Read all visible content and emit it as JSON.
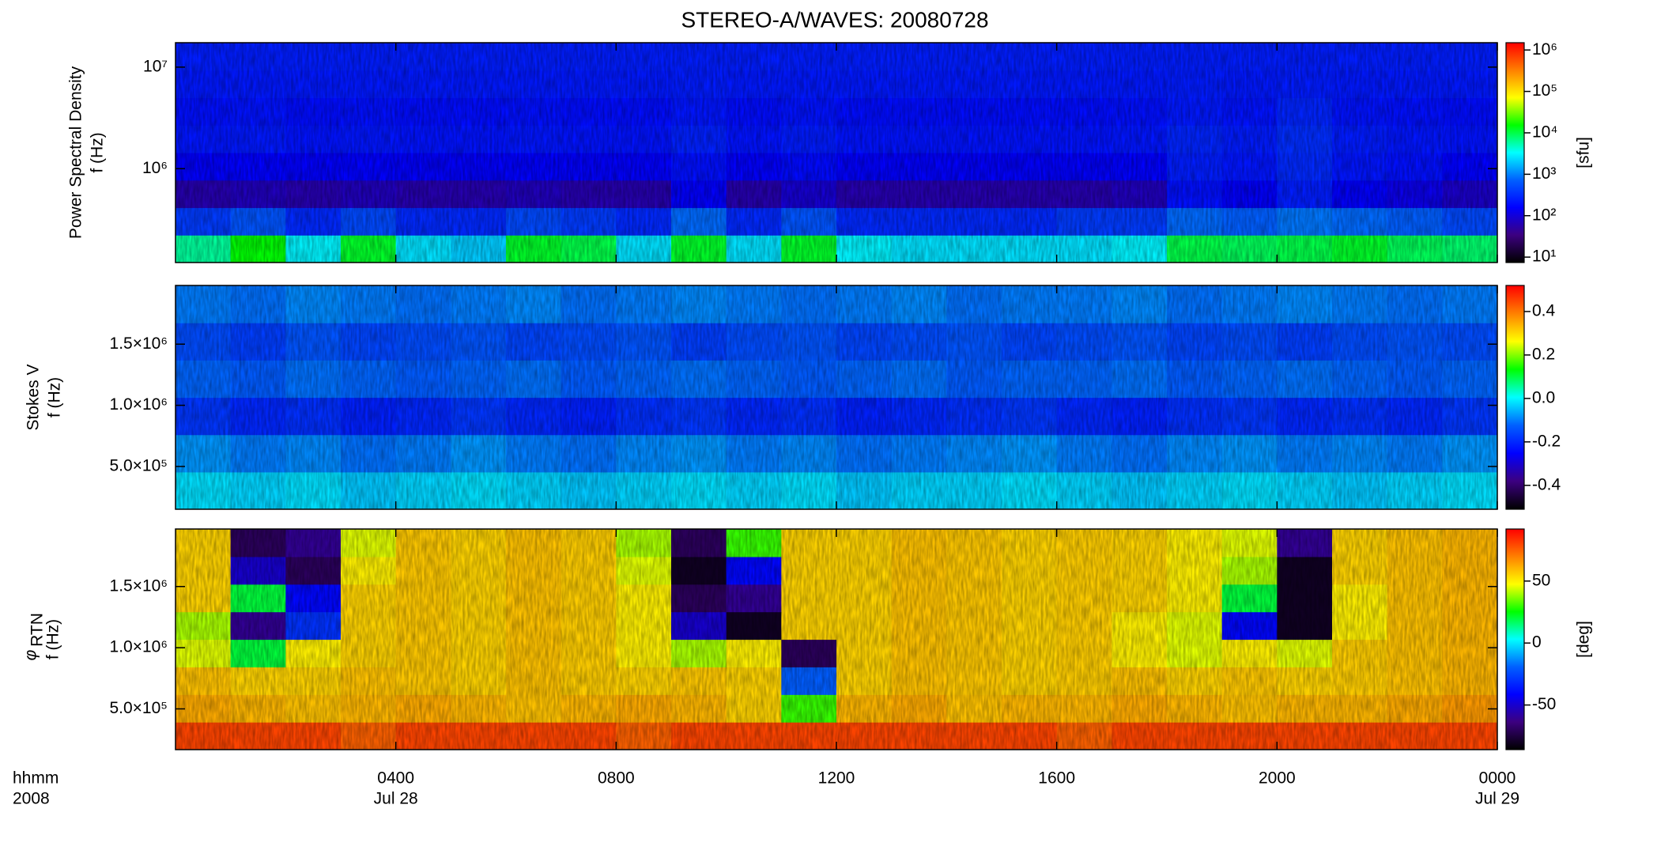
{
  "chart_data": [
    {
      "type": "heatmap",
      "title": "STEREO-A/WAVES: 20080728",
      "ylabel_title": "Power Spectral Density",
      "ylabel": "f (Hz)",
      "ylog": true,
      "ylim": [
        119000,
        17400000
      ],
      "yticks": [
        {
          "value": 1000000,
          "label": "10⁶"
        },
        {
          "value": 10000000,
          "label": "10⁷"
        }
      ],
      "clog": true,
      "clim": [
        7.4,
        1500000
      ],
      "clabel": "[sfu]",
      "cticks": [
        {
          "value": 10,
          "label": "10¹"
        },
        {
          "value": 100,
          "label": "10²"
        },
        {
          "value": 1000,
          "label": "10³"
        },
        {
          "value": 10000,
          "label": "10⁴"
        },
        {
          "value": 100000,
          "label": "10⁵"
        },
        {
          "value": 1000000,
          "label": "10⁶"
        }
      ],
      "colormap": [
        "#000000",
        "#3c0080",
        "#0000ff",
        "#0060ff",
        "#00ffff",
        "#00ff00",
        "#ffff00",
        "#ff8000",
        "#ff0000"
      ],
      "z": [
        [
          6000,
          15000,
          3000,
          12000,
          2500,
          2000,
          12000,
          10000,
          2500,
          12000,
          2500,
          12000,
          3000,
          2500,
          2500,
          2500,
          2500,
          3000,
          10000,
          9000,
          10000,
          12000,
          9000,
          8000
        ],
        [
          400,
          600,
          300,
          500,
          300,
          300,
          500,
          400,
          300,
          800,
          300,
          600,
          300,
          300,
          300,
          300,
          400,
          400,
          800,
          700,
          900,
          800,
          700,
          500
        ],
        [
          60,
          70,
          60,
          70,
          60,
          60,
          70,
          60,
          60,
          150,
          60,
          90,
          60,
          60,
          60,
          60,
          60,
          70,
          200,
          150,
          250,
          150,
          120,
          80
        ],
        [
          150,
          160,
          150,
          160,
          150,
          150,
          160,
          150,
          150,
          200,
          150,
          180,
          150,
          150,
          150,
          150,
          150,
          160,
          250,
          220,
          300,
          220,
          200,
          160
        ],
        [
          220,
          230,
          210,
          220,
          210,
          210,
          220,
          210,
          210,
          260,
          210,
          240,
          210,
          210,
          210,
          210,
          210,
          220,
          280,
          240,
          320,
          240,
          220,
          210
        ],
        [
          200,
          210,
          190,
          200,
          190,
          190,
          200,
          190,
          190,
          220,
          190,
          210,
          190,
          190,
          190,
          190,
          190,
          200,
          230,
          210,
          280,
          210,
          200,
          190
        ],
        [
          230,
          230,
          230,
          230,
          230,
          230,
          230,
          230,
          230,
          240,
          230,
          230,
          230,
          230,
          230,
          230,
          230,
          230,
          240,
          230,
          240,
          230,
          230,
          230
        ],
        [
          250,
          250,
          250,
          250,
          250,
          250,
          250,
          250,
          250,
          250,
          250,
          250,
          250,
          250,
          250,
          250,
          250,
          250,
          250,
          250,
          250,
          250,
          250,
          250
        ]
      ]
    },
    {
      "type": "heatmap",
      "ylabel_title": "Stokes V",
      "ylabel": "f (Hz)",
      "ylog": false,
      "ylim": [
        150000,
        1980000
      ],
      "yticks": [
        {
          "value": 500000,
          "label": "5.0×10⁵"
        },
        {
          "value": 1000000,
          "label": "1.0×10⁶"
        },
        {
          "value": 1500000,
          "label": "1.5×10⁶"
        }
      ],
      "clog": false,
      "clim": [
        -0.51,
        0.52
      ],
      "cticks": [
        -0.4,
        -0.2,
        {
          "value": 0,
          "label": "0.0"
        },
        0.2,
        0.4
      ],
      "colormap": [
        "#000000",
        "#3c0080",
        "#0000ff",
        "#0060ff",
        "#00ffff",
        "#00ff00",
        "#ffff00",
        "#ff8000",
        "#ff0000"
      ],
      "z": [
        [
          -0.02,
          -0.03,
          -0.02,
          -0.04,
          -0.03,
          -0.02,
          -0.03,
          -0.04,
          -0.03,
          -0.02,
          -0.03,
          -0.02,
          -0.04,
          -0.03,
          -0.03,
          -0.02,
          -0.03,
          -0.04,
          -0.03,
          -0.02,
          -0.03,
          -0.04,
          -0.03,
          -0.02
        ],
        [
          -0.08,
          -0.1,
          -0.09,
          -0.11,
          -0.1,
          -0.08,
          -0.1,
          -0.11,
          -0.09,
          -0.08,
          -0.1,
          -0.09,
          -0.11,
          -0.1,
          -0.09,
          -0.08,
          -0.1,
          -0.11,
          -0.09,
          -0.08,
          -0.1,
          -0.09,
          -0.1,
          -0.08
        ],
        [
          -0.18,
          -0.2,
          -0.19,
          -0.21,
          -0.2,
          -0.18,
          -0.2,
          -0.21,
          -0.19,
          -0.18,
          -0.2,
          -0.19,
          -0.21,
          -0.2,
          -0.19,
          -0.18,
          -0.2,
          -0.21,
          -0.19,
          -0.18,
          -0.2,
          -0.19,
          -0.2,
          -0.18
        ],
        [
          -0.12,
          -0.13,
          -0.11,
          -0.12,
          -0.13,
          -0.12,
          -0.11,
          -0.13,
          -0.12,
          -0.11,
          -0.12,
          -0.13,
          -0.12,
          -0.11,
          -0.13,
          -0.12,
          -0.12,
          -0.11,
          -0.13,
          -0.12,
          -0.11,
          -0.12,
          -0.13,
          -0.12
        ],
        [
          -0.15,
          -0.17,
          -0.14,
          -0.16,
          -0.15,
          -0.14,
          -0.16,
          -0.15,
          -0.14,
          -0.17,
          -0.15,
          -0.14,
          -0.16,
          -0.15,
          -0.14,
          -0.16,
          -0.15,
          -0.14,
          -0.16,
          -0.15,
          -0.17,
          -0.15,
          -0.14,
          -0.15
        ],
        [
          -0.1,
          -0.11,
          -0.09,
          -0.1,
          -0.11,
          -0.1,
          -0.09,
          -0.11,
          -0.1,
          -0.09,
          -0.1,
          -0.11,
          -0.1,
          -0.09,
          -0.11,
          -0.1,
          -0.1,
          -0.09,
          -0.11,
          -0.1,
          -0.09,
          -0.1,
          -0.11,
          -0.1
        ]
      ]
    },
    {
      "type": "heatmap",
      "ylabel_symbol": "φ",
      "ylabel_subscript": "RTN",
      "ylabel": "f (Hz)",
      "ylog": false,
      "ylim": [
        167000,
        1970000
      ],
      "yticks": [
        {
          "value": 500000,
          "label": "5.0×10⁵"
        },
        {
          "value": 1000000,
          "label": "1.0×10⁶"
        },
        {
          "value": 1500000,
          "label": "1.5×10⁶"
        }
      ],
      "clog": false,
      "clim": [
        -86,
        92
      ],
      "clabel": "[deg]",
      "cticks": [
        -50,
        0,
        50
      ],
      "colormap": [
        "#000000",
        "#3c0080",
        "#0000ff",
        "#0060ff",
        "#00ffff",
        "#00ff00",
        "#ffff00",
        "#ff8000",
        "#ff0000"
      ],
      "z": [
        [
          80,
          80,
          80,
          75,
          80,
          80,
          80,
          80,
          75,
          80,
          80,
          80,
          80,
          80,
          80,
          80,
          75,
          80,
          80,
          80,
          80,
          80,
          80,
          80
        ],
        [
          62,
          60,
          58,
          60,
          62,
          60,
          58,
          60,
          62,
          60,
          55,
          30,
          60,
          62,
          58,
          60,
          60,
          62,
          60,
          58,
          60,
          60,
          62,
          65
        ],
        [
          58,
          55,
          55,
          58,
          57,
          55,
          58,
          56,
          55,
          57,
          55,
          -20,
          55,
          58,
          57,
          55,
          56,
          58,
          55,
          57,
          55,
          56,
          58,
          60
        ],
        [
          45,
          20,
          50,
          55,
          57,
          55,
          58,
          56,
          50,
          40,
          50,
          -70,
          55,
          58,
          57,
          55,
          56,
          50,
          45,
          50,
          45,
          56,
          58,
          60
        ],
        [
          40,
          -60,
          -30,
          55,
          57,
          55,
          58,
          56,
          50,
          -50,
          -80,
          55,
          55,
          58,
          57,
          55,
          56,
          50,
          45,
          -40,
          -80,
          50,
          58,
          60
        ],
        [
          55,
          20,
          -40,
          55,
          57,
          55,
          58,
          56,
          50,
          -70,
          -60,
          55,
          55,
          58,
          57,
          55,
          56,
          55,
          50,
          20,
          -80,
          50,
          58,
          60
        ],
        [
          55,
          -50,
          -70,
          50,
          57,
          55,
          58,
          56,
          45,
          -80,
          -40,
          55,
          55,
          58,
          57,
          55,
          56,
          55,
          50,
          40,
          -80,
          55,
          58,
          60
        ],
        [
          55,
          -70,
          -60,
          45,
          57,
          55,
          58,
          56,
          40,
          -70,
          30,
          55,
          55,
          58,
          57,
          55,
          56,
          55,
          50,
          45,
          -60,
          55,
          58,
          60
        ]
      ],
      "xlim": [
        0,
        24
      ],
      "xticks": [
        {
          "value": 4,
          "label": "0400"
        },
        {
          "value": 8,
          "label": "0800"
        },
        {
          "value": 12,
          "label": "1200"
        },
        {
          "value": 16,
          "label": "1600"
        },
        {
          "value": 20,
          "label": "2000"
        },
        {
          "value": 24,
          "label": "0000"
        }
      ],
      "xdates": [
        {
          "value": 4,
          "label": "Jul 28"
        },
        {
          "value": 24,
          "label": "Jul 29"
        }
      ],
      "xunit_label": "hhmm",
      "year_label": "2008"
    }
  ]
}
